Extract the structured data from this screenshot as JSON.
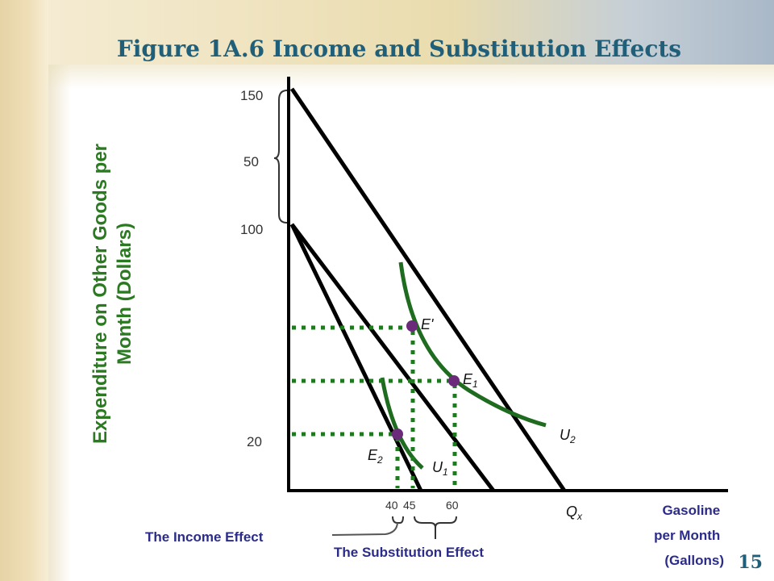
{
  "slide": {
    "title": "Figure 1A.6 Income and Substitution Effects",
    "page_number": "15"
  },
  "axes": {
    "y_label": "Expenditure on Other Goods per Month (Dollars)",
    "x_label_lines": [
      "Gasoline",
      "per Month",
      "(Gallons)"
    ],
    "y_ticks": [
      "150",
      "100",
      "20"
    ],
    "y_brace_label": "50",
    "x_ticks": [
      "40",
      "45",
      "60"
    ],
    "x_end_label": "Q",
    "x_end_label_sub": "x"
  },
  "points": [
    {
      "name": "E",
      "sub": "",
      "suffix": "'"
    },
    {
      "name": "E",
      "sub": "1",
      "suffix": ""
    },
    {
      "name": "E",
      "sub": "2",
      "suffix": ""
    }
  ],
  "curves": [
    {
      "name": "U",
      "sub": "1"
    },
    {
      "name": "U",
      "sub": "2"
    }
  ],
  "annotations": {
    "income_effect": "The Income Effect",
    "substitution_effect": "The Substitution Effect"
  },
  "colors": {
    "title": "#1f5f7a",
    "axis_label": "#2b7a22",
    "curve": "#1f6b1f",
    "point": "#6b2a7a",
    "dotted": "#1f7a1f",
    "note": "#2b2b8a"
  }
}
